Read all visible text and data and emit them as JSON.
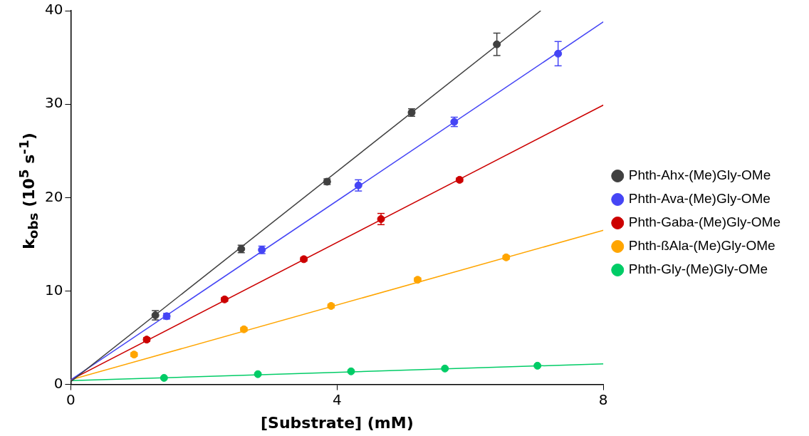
{
  "chart_data": {
    "type": "scatter",
    "xlabel": "[Substrate] (mM)",
    "ylabel": "k$_{obs}$ (10$^{5}$ s$^{-1}$)",
    "xlim": [
      0,
      8
    ],
    "xticks": [
      0,
      4,
      8
    ],
    "ylim": [
      0,
      40
    ],
    "yticks": [
      0,
      10,
      20,
      30,
      40
    ],
    "grid": false,
    "legend": "right",
    "marker": "circle",
    "series": [
      {
        "name": "Phth-Ahx-(Me)Gly-OMe",
        "color": "#404040",
        "x": [
          1.27,
          2.56,
          3.85,
          5.12,
          6.4
        ],
        "values": [
          7.4,
          14.5,
          21.7,
          29.1,
          36.4
        ],
        "errors": [
          0.5,
          0.4,
          0.3,
          0.4,
          1.2
        ]
      },
      {
        "name": "Phth-Ava-(Me)Gly-OMe",
        "color": "#4545f5",
        "x": [
          1.44,
          2.87,
          4.32,
          5.76,
          7.32
        ],
        "values": [
          7.3,
          14.4,
          21.3,
          28.1,
          35.4
        ],
        "errors": [
          0.3,
          0.4,
          0.6,
          0.5,
          1.3
        ]
      },
      {
        "name": "Phth-Gaba-(Me)Gly-OMe",
        "color": "#cc0000",
        "x": [
          1.14,
          2.31,
          3.5,
          4.66,
          5.84
        ],
        "values": [
          4.8,
          9.1,
          13.4,
          17.7,
          21.9
        ],
        "errors": [
          0.2,
          0.2,
          0.2,
          0.6,
          0.2
        ]
      },
      {
        "name": "Phth-ßAla-(Me)Gly-OMe",
        "color": "#ffa500",
        "x": [
          0.95,
          2.6,
          3.91,
          5.21,
          6.54
        ],
        "values": [
          3.2,
          5.9,
          8.4,
          11.2,
          13.6
        ],
        "errors": [
          0.2,
          0.2,
          0.2,
          0.2,
          0.2
        ]
      },
      {
        "name": "Phth-Gly-(Me)Gly-OMe",
        "color": "#00cc66",
        "x": [
          1.4,
          2.81,
          4.21,
          5.62,
          7.01
        ],
        "values": [
          0.7,
          1.1,
          1.4,
          1.7,
          2.0
        ]
      },
      {
        "type": "line",
        "marker": "none",
        "color": "#404040",
        "x": [
          0,
          7.06
        ],
        "values": [
          0.3,
          40
        ]
      },
      {
        "type": "line",
        "marker": "none",
        "color": "#4545f5",
        "x": [
          0,
          8
        ],
        "values": [
          0.5,
          38.8
        ]
      },
      {
        "type": "line",
        "marker": "none",
        "color": "#cc0000",
        "x": [
          0,
          8
        ],
        "values": [
          0.5,
          29.9
        ]
      },
      {
        "type": "line",
        "marker": "none",
        "color": "#ffa500",
        "x": [
          0,
          8
        ],
        "values": [
          0.5,
          16.5
        ]
      },
      {
        "type": "line",
        "marker": "none",
        "color": "#00cc66",
        "x": [
          0,
          8
        ],
        "values": [
          0.4,
          2.2
        ]
      }
    ]
  }
}
